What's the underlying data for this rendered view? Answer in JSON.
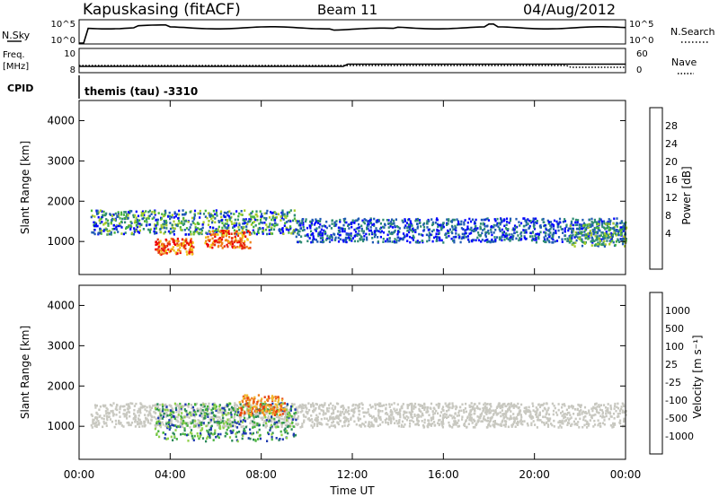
{
  "header": {
    "site": "Kapuskasing (fitACF)",
    "beam": "Beam 11",
    "date": "04/Aug/2012"
  },
  "top_panels": {
    "nsky_label": "N.Sky",
    "nsky_ticks": [
      "10^5",
      "10^0"
    ],
    "nsearch_label": "N.Search",
    "nsearch_ticks": [
      "10^5",
      "10^0"
    ],
    "freq_label_1": "Freq.",
    "freq_label_2": "[MHz]",
    "freq_ticks": [
      "10",
      "8"
    ],
    "nave_label": "Nave",
    "nave_ticks": [
      "60",
      "0"
    ],
    "cpid_label": "CPID",
    "cpid_value": "themis (tau) -3310"
  },
  "chart_data": [
    {
      "type": "heatmap",
      "name": "power",
      "ylabel": "Slant Range [km]",
      "ylim": [
        180,
        4500
      ],
      "yticks": [
        "1000",
        "2000",
        "3000",
        "4000"
      ],
      "xlim": [
        0,
        24
      ],
      "colorbar": {
        "label": "Power [dB]",
        "ticks": [
          "28",
          "24",
          "20",
          "16",
          "12",
          "8",
          "4"
        ],
        "colors": [
          "#0000ff",
          "#1f5ab4",
          "#2f8c74",
          "#45b23c",
          "#a6cc2a",
          "#f3c51a",
          "#f07e16",
          "#e53010",
          "#ee0000"
        ]
      },
      "features": [
        {
          "t0": 0.5,
          "t1": 9.5,
          "r0": 1200,
          "r1": 1800,
          "level": "low-mid"
        },
        {
          "t0": 3.3,
          "t1": 5.0,
          "r0": 700,
          "r1": 1100,
          "level": "high"
        },
        {
          "t0": 5.5,
          "t1": 7.5,
          "r0": 850,
          "r1": 1300,
          "level": "high"
        },
        {
          "t0": 9.5,
          "t1": 24.0,
          "r0": 1000,
          "r1": 1600,
          "level": "low"
        },
        {
          "t0": 21.5,
          "t1": 24.0,
          "r0": 900,
          "r1": 1500,
          "level": "mid"
        }
      ]
    },
    {
      "type": "heatmap",
      "name": "velocity",
      "ylabel": "Slant Range [km]",
      "ylim": [
        180,
        4500
      ],
      "yticks": [
        "1000",
        "2000",
        "3000",
        "4000"
      ],
      "xlim": [
        0,
        24
      ],
      "colorbar": {
        "label": "Velocity [m s⁻¹]",
        "ticks": [
          "1000",
          "500",
          "100",
          "25",
          "-25",
          "-100",
          "-500",
          "-1000"
        ],
        "colors": [
          "#1f3bb0",
          "#2a8a58",
          "#45b23c",
          "#8fd04a",
          "#c8c8c0",
          "#f0b830",
          "#f08020",
          "#e84010",
          "#e00000"
        ]
      },
      "features": [
        {
          "t0": 0.5,
          "t1": 24.0,
          "r0": 1000,
          "r1": 1600,
          "level": "ground-scatter"
        },
        {
          "t0": 3.3,
          "t1": 9.5,
          "r0": 650,
          "r1": 1600,
          "level": "positive"
        },
        {
          "t0": 7.0,
          "t1": 9.0,
          "r0": 1300,
          "r1": 1800,
          "level": "negative"
        }
      ]
    }
  ],
  "x_axis": {
    "ticks": [
      "00:00",
      "04:00",
      "08:00",
      "12:00",
      "16:00",
      "20:00",
      "00:00"
    ],
    "label": "Time UT"
  }
}
